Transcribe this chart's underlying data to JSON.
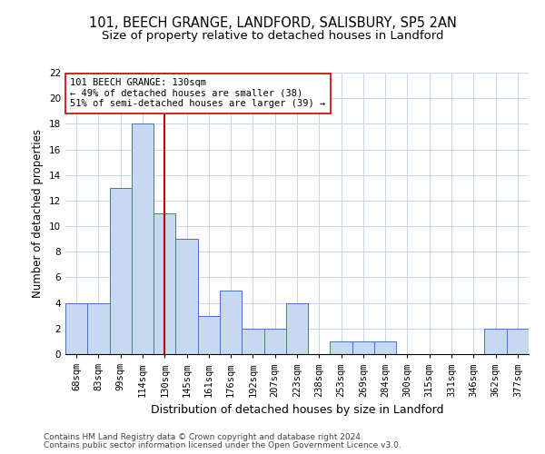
{
  "title1": "101, BEECH GRANGE, LANDFORD, SALISBURY, SP5 2AN",
  "title2": "Size of property relative to detached houses in Landford",
  "xlabel": "Distribution of detached houses by size in Landford",
  "ylabel": "Number of detached properties",
  "categories": [
    "68sqm",
    "83sqm",
    "99sqm",
    "114sqm",
    "130sqm",
    "145sqm",
    "161sqm",
    "176sqm",
    "192sqm",
    "207sqm",
    "223sqm",
    "238sqm",
    "253sqm",
    "269sqm",
    "284sqm",
    "300sqm",
    "315sqm",
    "331sqm",
    "346sqm",
    "362sqm",
    "377sqm"
  ],
  "values": [
    4,
    4,
    13,
    18,
    11,
    9,
    3,
    5,
    2,
    2,
    4,
    0,
    1,
    1,
    1,
    0,
    0,
    0,
    0,
    2,
    2
  ],
  "bar_color": "#c6d9f1",
  "bar_edge_color": "#4472c4",
  "vline_x": 4,
  "vline_color": "#cc0000",
  "annotation_line1": "101 BEECH GRANGE: 130sqm",
  "annotation_line2": "← 49% of detached houses are smaller (38)",
  "annotation_line3": "51% of semi-detached houses are larger (39) →",
  "annotation_box_color": "#ffffff",
  "annotation_box_edge": "#cc0000",
  "ylim": [
    0,
    22
  ],
  "yticks": [
    0,
    2,
    4,
    6,
    8,
    10,
    12,
    14,
    16,
    18,
    20,
    22
  ],
  "footer1": "Contains HM Land Registry data © Crown copyright and database right 2024.",
  "footer2": "Contains public sector information licensed under the Open Government Licence v3.0.",
  "bg_color": "#ffffff",
  "grid_color": "#c8d4e8",
  "title1_fontsize": 10.5,
  "title2_fontsize": 9.5,
  "xlabel_fontsize": 9,
  "ylabel_fontsize": 8.5,
  "tick_fontsize": 7.5,
  "annot_fontsize": 7.5,
  "footer_fontsize": 6.5
}
